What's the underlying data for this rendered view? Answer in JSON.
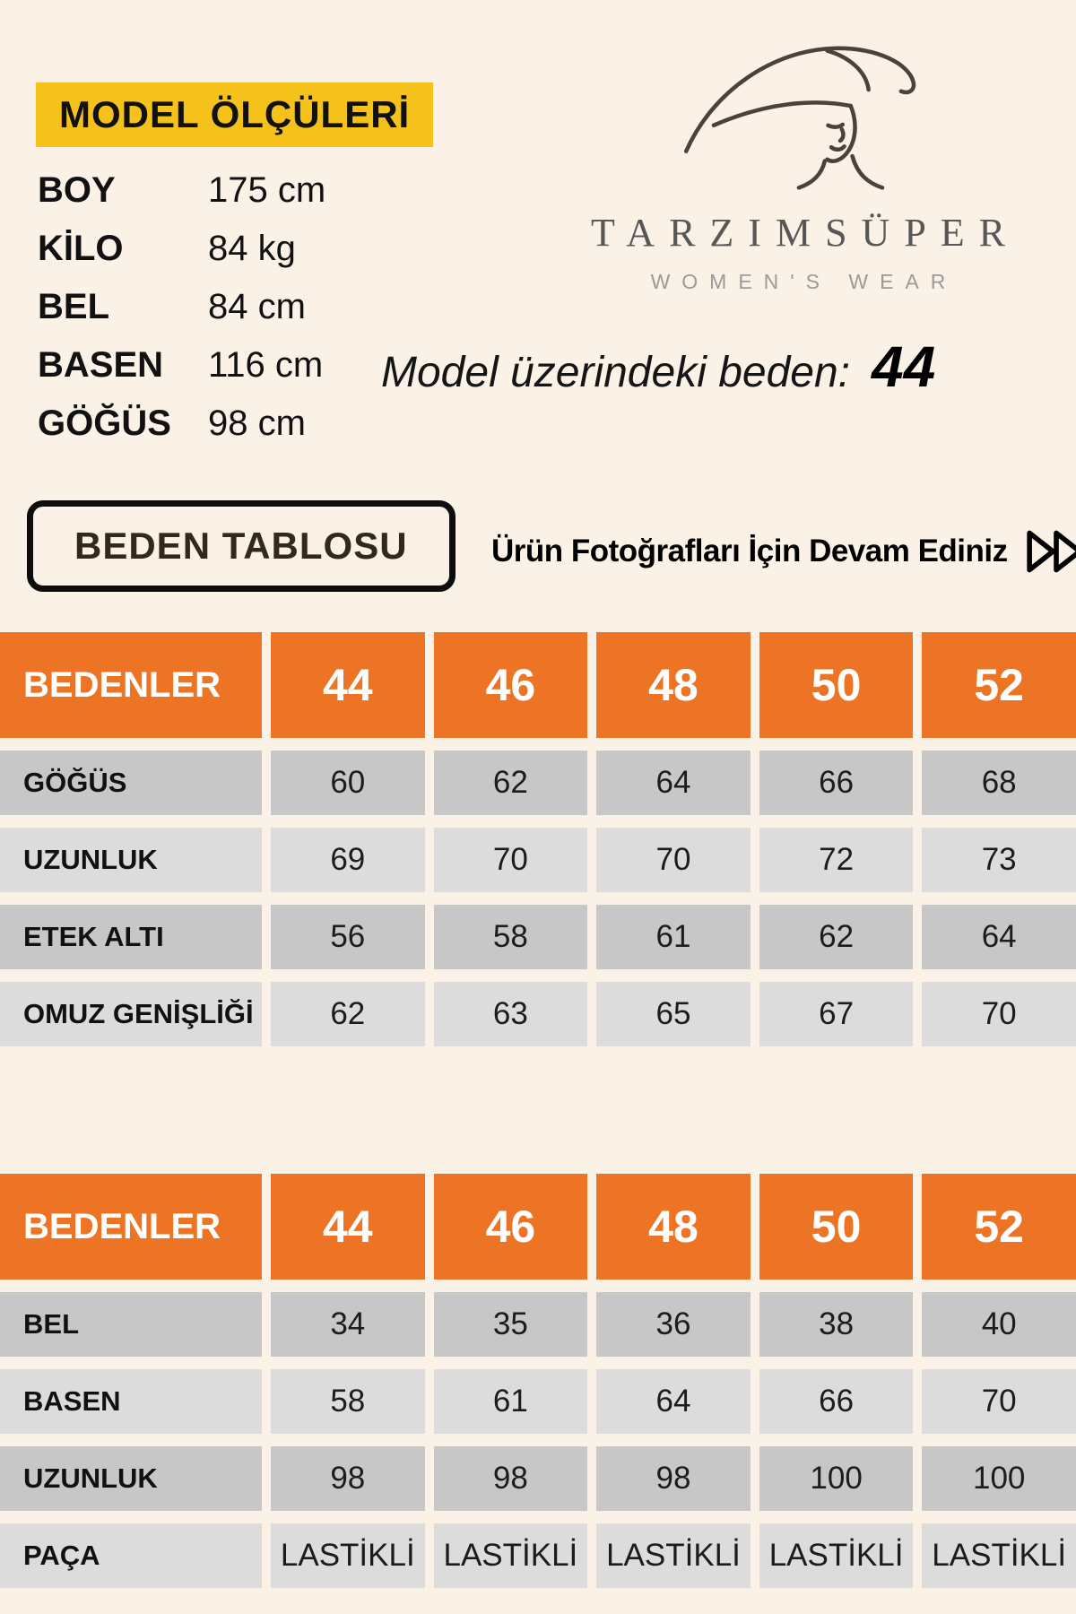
{
  "colors": {
    "background": "#faf1e7",
    "accent_yellow": "#f5c21b",
    "accent_orange": "#ec7424",
    "row_dark": "#c7c7c7",
    "row_light": "#dcdcdc"
  },
  "model_info": {
    "title": "MODEL ÖLÇÜLERİ",
    "rows": [
      {
        "label": "BOY",
        "value": "175 cm"
      },
      {
        "label": "KİLO",
        "value": "84 kg"
      },
      {
        "label": "BEL",
        "value": "84 cm"
      },
      {
        "label": "BASEN",
        "value": "116 cm"
      },
      {
        "label": "GÖĞÜS",
        "value": "98 cm"
      }
    ]
  },
  "brand": {
    "name": "TARZIMSÜPER",
    "tagline": "WOMEN'S WEAR",
    "logo_icon": "woman-with-hat-line-art"
  },
  "model_size": {
    "label": "Model üzerindeki beden:",
    "value": "44"
  },
  "size_table_button": "BEDEN TABLOSU",
  "continue_note": "Ürün Fotoğrafları İçin Devam Ediniz",
  "icons": {
    "continue": "fast-forward-icon"
  },
  "tables": [
    {
      "header": [
        "BEDENLER",
        "44",
        "46",
        "48",
        "50",
        "52"
      ],
      "rows": [
        {
          "label": "GÖĞÜS",
          "values": [
            "60",
            "62",
            "64",
            "66",
            "68"
          ]
        },
        {
          "label": "UZUNLUK",
          "values": [
            "69",
            "70",
            "70",
            "72",
            "73"
          ]
        },
        {
          "label": "ETEK ALTI",
          "values": [
            "56",
            "58",
            "61",
            "62",
            "64"
          ]
        },
        {
          "label": "OMUZ GENİŞLİĞİ",
          "values": [
            "62",
            "63",
            "65",
            "67",
            "70"
          ]
        }
      ]
    },
    {
      "header": [
        "BEDENLER",
        "44",
        "46",
        "48",
        "50",
        "52"
      ],
      "rows": [
        {
          "label": "BEL",
          "values": [
            "34",
            "35",
            "36",
            "38",
            "40"
          ]
        },
        {
          "label": "BASEN",
          "values": [
            "58",
            "61",
            "64",
            "66",
            "70"
          ]
        },
        {
          "label": "UZUNLUK",
          "values": [
            "98",
            "98",
            "98",
            "100",
            "100"
          ]
        },
        {
          "label": "PAÇA",
          "values": [
            "LASTİKLİ",
            "LASTİKLİ",
            "LASTİKLİ",
            "LASTİKLİ",
            "LASTİKLİ"
          ]
        }
      ]
    }
  ]
}
